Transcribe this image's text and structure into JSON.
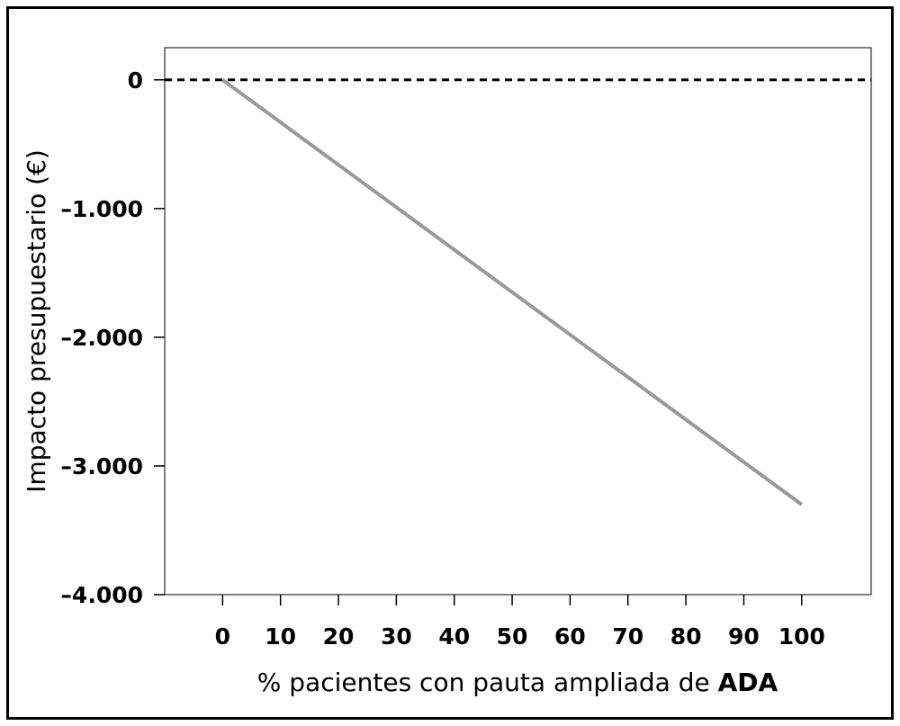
{
  "chart_data": {
    "type": "line",
    "title": "",
    "xlabel_prefix": "% pacientes con pauta ampliada de",
    "xlabel_emphasis": "ADA",
    "xlabel": "% pacientes con pauta ampliada de ADA",
    "ylabel": "Impacto presupuestario (€)",
    "x": [
      0,
      100
    ],
    "series": [
      {
        "name": "",
        "values": [
          0,
          -3300
        ],
        "color": "#999999"
      }
    ],
    "reference_line": {
      "y": 0,
      "style": "dashed",
      "color": "#000000"
    },
    "xlim": [
      -10,
      112
    ],
    "ylim": [
      -4000,
      250
    ],
    "x_ticks": [
      0,
      10,
      20,
      30,
      40,
      50,
      60,
      70,
      80,
      90,
      100
    ],
    "x_tick_labels": [
      "0",
      "10",
      "20",
      "30",
      "40",
      "50",
      "60",
      "70",
      "80",
      "90",
      "100"
    ],
    "y_ticks": [
      0,
      -1000,
      -2000,
      -3000,
      -4000
    ],
    "y_tick_labels": [
      "0",
      "–1.000",
      "–2.000",
      "–3.000",
      "–4.000"
    ],
    "grid": false,
    "legend": "none"
  }
}
